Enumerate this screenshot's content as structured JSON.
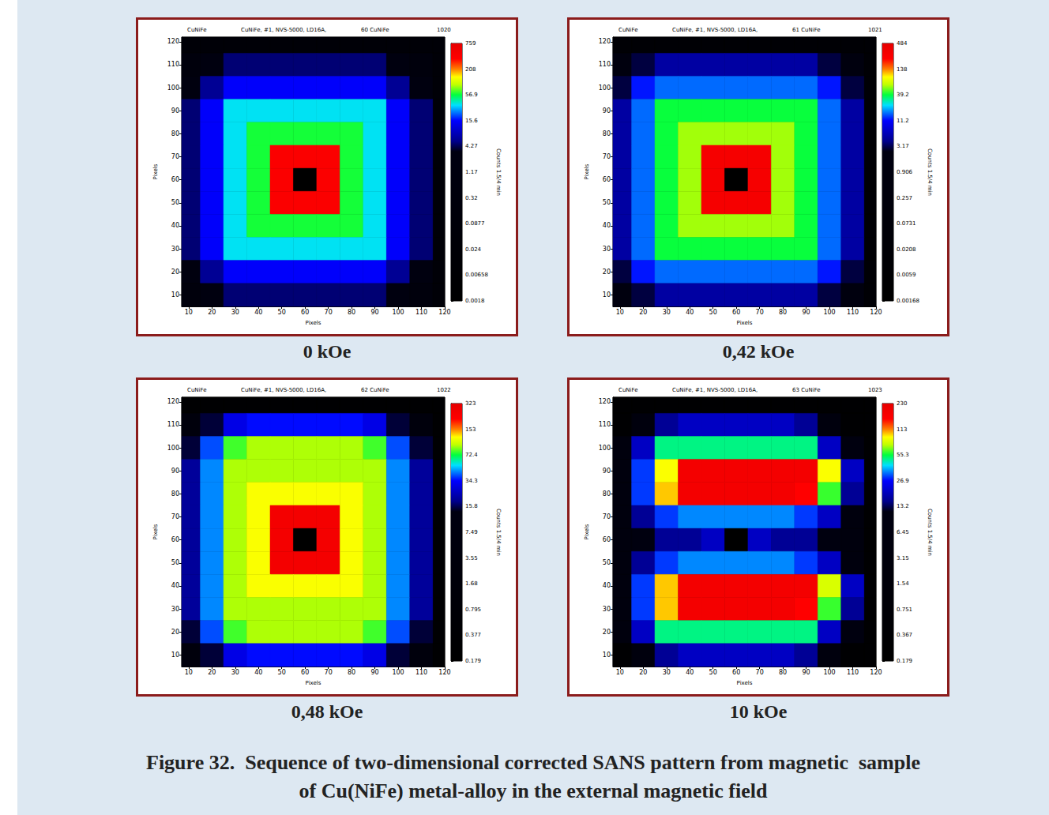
{
  "chart_data": [
    {
      "type": "heatmap",
      "title": "0 kOe",
      "header": [
        "CuNiFe",
        "CuNiFe, #1, NVS-5000, LD16A,",
        "60 CuNiFe",
        "1020"
      ],
      "xlabel": "Pixels",
      "ylabel": "Pixels",
      "xlim": [
        7,
        120
      ],
      "ylim": [
        5,
        122
      ],
      "xticks": [
        10,
        20,
        30,
        40,
        50,
        60,
        70,
        80,
        90,
        100,
        110,
        120
      ],
      "yticks": [
        10,
        20,
        30,
        40,
        50,
        60,
        70,
        80,
        90,
        100,
        110,
        120
      ],
      "cells": {
        "x": [
          10,
          20,
          30,
          40,
          50,
          60,
          70,
          80,
          90,
          100,
          110,
          120
        ],
        "y": [
          120,
          110,
          100,
          90,
          80,
          70,
          60,
          50,
          40,
          30,
          20,
          10
        ],
        "values": [
          [
            0.05,
            0.05,
            0.05,
            0.05,
            0.05,
            0.05,
            0.05,
            0.05,
            0.05,
            0.05,
            0.05,
            0.05
          ],
          [
            0.5,
            2,
            5,
            5,
            5,
            5,
            5,
            5,
            5,
            2,
            0.5,
            0.05
          ],
          [
            2,
            6,
            15,
            15,
            15,
            15,
            15,
            15,
            15,
            6,
            2,
            0.05
          ],
          [
            5,
            15,
            35,
            35,
            35,
            35,
            35,
            35,
            35,
            15,
            5,
            0.05
          ],
          [
            5,
            15,
            35,
            60,
            60,
            60,
            60,
            60,
            35,
            15,
            5,
            0.05
          ],
          [
            5,
            15,
            35,
            60,
            400,
            400,
            400,
            60,
            35,
            15,
            5,
            0.05
          ],
          [
            5,
            15,
            35,
            60,
            400,
            0.002,
            400,
            60,
            35,
            15,
            5,
            0.05
          ],
          [
            5,
            15,
            35,
            60,
            400,
            400,
            400,
            60,
            35,
            15,
            5,
            0.05
          ],
          [
            5,
            15,
            35,
            60,
            60,
            60,
            60,
            60,
            35,
            15,
            5,
            0.05
          ],
          [
            5,
            15,
            35,
            35,
            35,
            35,
            35,
            35,
            35,
            15,
            5,
            0.05
          ],
          [
            2,
            6,
            15,
            15,
            15,
            15,
            15,
            15,
            15,
            6,
            2,
            0.05
          ],
          [
            0.5,
            2,
            5,
            5,
            5,
            5,
            5,
            5,
            5,
            2,
            0.5,
            0.05
          ]
        ]
      },
      "colorbar": {
        "label": "Counts 1.5/4 min",
        "ticks": [
          759,
          208,
          56.9,
          15.6,
          4.27,
          1.17,
          0.32,
          0.0877,
          0.024,
          0.00658,
          0.0018
        ]
      }
    },
    {
      "type": "heatmap",
      "title": "0,42 kOe",
      "header": [
        "CuNiFe",
        "CuNiFe, #1, NVS-5000, LD16A,",
        "61 CuNiFe",
        "1021"
      ],
      "xlabel": "Pixels",
      "ylabel": "Pixels",
      "xlim": [
        7,
        120
      ],
      "ylim": [
        5,
        122
      ],
      "xticks": [
        10,
        20,
        30,
        40,
        50,
        60,
        70,
        80,
        90,
        100,
        110,
        120
      ],
      "yticks": [
        10,
        20,
        30,
        40,
        50,
        60,
        70,
        80,
        90,
        100,
        110,
        120
      ],
      "cells": {
        "x": [
          10,
          20,
          30,
          40,
          50,
          60,
          70,
          80,
          90,
          100,
          110,
          120
        ],
        "y": [
          120,
          110,
          100,
          90,
          80,
          70,
          60,
          50,
          40,
          30,
          20,
          10
        ],
        "values": [
          [
            0.02,
            0.02,
            0.02,
            0.02,
            0.02,
            0.02,
            0.02,
            0.02,
            0.02,
            0.02,
            0.02,
            0.02
          ],
          [
            1,
            3,
            5,
            5,
            5,
            5,
            5,
            5,
            5,
            3,
            1,
            0.02
          ],
          [
            3,
            12,
            16,
            16,
            16,
            16,
            16,
            16,
            16,
            12,
            3,
            0.02
          ],
          [
            5,
            16,
            40,
            40,
            40,
            40,
            40,
            40,
            40,
            16,
            5,
            0.02
          ],
          [
            5,
            16,
            40,
            60,
            60,
            60,
            60,
            60,
            40,
            16,
            5,
            0.02
          ],
          [
            5,
            16,
            40,
            60,
            300,
            300,
            300,
            60,
            40,
            16,
            5,
            0.02
          ],
          [
            5,
            16,
            40,
            60,
            300,
            0.002,
            300,
            60,
            40,
            16,
            5,
            0.02
          ],
          [
            5,
            16,
            40,
            60,
            300,
            300,
            300,
            60,
            40,
            16,
            5,
            0.02
          ],
          [
            5,
            16,
            40,
            60,
            60,
            60,
            60,
            60,
            40,
            16,
            5,
            0.02
          ],
          [
            5,
            16,
            40,
            40,
            40,
            40,
            40,
            40,
            40,
            16,
            5,
            0.02
          ],
          [
            3,
            12,
            16,
            16,
            16,
            16,
            16,
            16,
            16,
            12,
            3,
            0.02
          ],
          [
            1,
            3,
            5,
            5,
            5,
            5,
            5,
            5,
            5,
            3,
            1,
            0.02
          ]
        ]
      },
      "colorbar": {
        "label": "Counts 1.5/4 min",
        "ticks": [
          484,
          138,
          39.2,
          11.2,
          3.17,
          0.906,
          0.257,
          0.0731,
          0.0208,
          0.0059,
          0.00168
        ]
      }
    },
    {
      "type": "heatmap",
      "title": "0,48 kOe",
      "header": [
        "CuNiFe",
        "CuNiFe, #1, NVS-5000, LD16A,",
        "62 CuNiFe",
        "1022"
      ],
      "xlabel": "Pixels",
      "ylabel": "Pixels",
      "xlim": [
        7,
        120
      ],
      "ylim": [
        5,
        122
      ],
      "xticks": [
        10,
        20,
        30,
        40,
        50,
        60,
        70,
        80,
        90,
        100,
        110,
        120
      ],
      "yticks": [
        10,
        20,
        30,
        40,
        50,
        60,
        70,
        80,
        90,
        100,
        110,
        120
      ],
      "cells": {
        "x": [
          10,
          20,
          30,
          40,
          50,
          60,
          70,
          80,
          90,
          100,
          110,
          120
        ],
        "y": [
          120,
          110,
          100,
          90,
          80,
          70,
          60,
          50,
          40,
          30,
          20,
          10
        ],
        "values": [
          [
            0.3,
            0.3,
            0.3,
            0.3,
            0.3,
            0.3,
            0.3,
            0.3,
            0.3,
            0.3,
            0.3,
            0.3
          ],
          [
            5,
            15,
            30,
            35,
            35,
            35,
            35,
            35,
            30,
            15,
            5,
            0.3
          ],
          [
            15,
            40,
            80,
            95,
            95,
            95,
            95,
            95,
            80,
            40,
            15,
            0.3
          ],
          [
            20,
            45,
            95,
            95,
            95,
            95,
            95,
            95,
            95,
            45,
            20,
            0.3
          ],
          [
            20,
            45,
            95,
            120,
            120,
            120,
            120,
            120,
            95,
            45,
            20,
            0.3
          ],
          [
            20,
            45,
            95,
            120,
            250,
            250,
            250,
            120,
            95,
            45,
            20,
            0.3
          ],
          [
            20,
            45,
            95,
            120,
            250,
            0.2,
            250,
            120,
            95,
            45,
            20,
            0.3
          ],
          [
            20,
            45,
            95,
            120,
            250,
            250,
            250,
            120,
            95,
            45,
            20,
            0.3
          ],
          [
            20,
            45,
            95,
            120,
            120,
            120,
            120,
            120,
            95,
            45,
            20,
            0.3
          ],
          [
            20,
            45,
            95,
            95,
            95,
            95,
            95,
            95,
            95,
            45,
            20,
            0.3
          ],
          [
            15,
            40,
            80,
            95,
            95,
            95,
            95,
            95,
            80,
            40,
            15,
            0.3
          ],
          [
            5,
            15,
            30,
            35,
            35,
            35,
            35,
            35,
            30,
            15,
            5,
            0.3
          ]
        ]
      },
      "colorbar": {
        "label": "Counts 1.5/4 min",
        "ticks": [
          323,
          153,
          72.4,
          34.3,
          15.8,
          7.49,
          3.55,
          1.68,
          0.795,
          0.377,
          0.179
        ]
      }
    },
    {
      "type": "heatmap",
      "title": "10 kOe",
      "header": [
        "CuNiFe",
        "CuNiFe, #1, NVS-5000, LD16A,",
        "63 CuNiFe",
        "1023"
      ],
      "xlabel": "Pixels",
      "ylabel": "Pixels",
      "xlim": [
        7,
        120
      ],
      "ylim": [
        5,
        122
      ],
      "xticks": [
        10,
        20,
        30,
        40,
        50,
        60,
        70,
        80,
        90,
        100,
        110,
        120
      ],
      "yticks": [
        10,
        20,
        30,
        40,
        50,
        60,
        70,
        80,
        90,
        100,
        110,
        120
      ],
      "cells": {
        "x": [
          10,
          20,
          30,
          40,
          50,
          60,
          70,
          80,
          90,
          100,
          110,
          120
        ],
        "y": [
          120,
          110,
          100,
          90,
          80,
          70,
          60,
          50,
          40,
          30,
          20,
          10
        ],
        "values": [
          [
            0.3,
            0.3,
            0.3,
            0.3,
            0.3,
            0.3,
            0.3,
            0.3,
            0.3,
            0.3,
            0.3,
            0.3
          ],
          [
            0.3,
            5,
            16,
            20,
            20,
            20,
            20,
            20,
            16,
            5,
            0.3,
            0.3
          ],
          [
            5,
            20,
            50,
            50,
            50,
            50,
            50,
            50,
            50,
            20,
            10,
            0.3
          ],
          [
            5,
            30,
            90,
            180,
            180,
            180,
            180,
            180,
            180,
            90,
            20,
            0.3
          ],
          [
            5,
            30,
            100,
            180,
            180,
            180,
            180,
            180,
            150,
            60,
            16,
            0.3
          ],
          [
            5,
            16,
            30,
            35,
            35,
            35,
            35,
            35,
            30,
            20,
            5,
            0.3
          ],
          [
            5,
            10,
            16,
            16,
            20,
            0.2,
            20,
            16,
            16,
            10,
            5,
            0.3
          ],
          [
            5,
            16,
            30,
            35,
            35,
            35,
            35,
            35,
            30,
            20,
            5,
            0.3
          ],
          [
            5,
            30,
            100,
            180,
            180,
            180,
            180,
            180,
            180,
            80,
            20,
            0.3
          ],
          [
            5,
            30,
            100,
            180,
            180,
            180,
            180,
            180,
            150,
            60,
            16,
            0.3
          ],
          [
            5,
            20,
            50,
            50,
            50,
            50,
            50,
            50,
            50,
            20,
            10,
            0.3
          ],
          [
            0.3,
            5,
            16,
            20,
            20,
            20,
            20,
            20,
            16,
            5,
            0.3,
            0.3
          ]
        ]
      },
      "colorbar": {
        "label": "Counts 1.5/4 min",
        "ticks": [
          230,
          113,
          55.3,
          26.9,
          13.2,
          6.45,
          3.15,
          1.54,
          0.751,
          0.367,
          0.179
        ]
      }
    }
  ],
  "caption": [
    "Figure 32.  Sequence of two-dimensional corrected SANS pattern from magnetic  sample",
    "of Cu(NiFe) metal-alloy in the external magnetic field"
  ]
}
